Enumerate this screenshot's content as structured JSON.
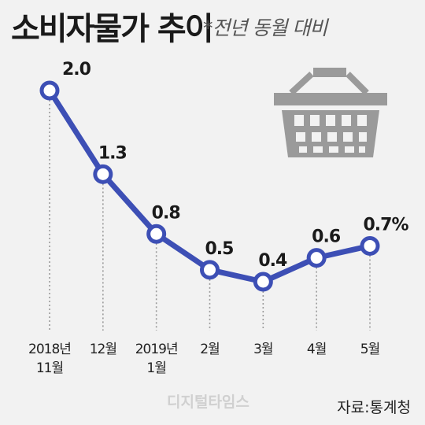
{
  "title": "소비자물가 추이",
  "subtitle": "*전년 동월 대비",
  "source": "자료:통계청",
  "watermark": "디지털타임스",
  "basket_icon": "shopping-basket-icon",
  "colors": {
    "line": "#3d4fb5",
    "marker_fill": "#ffffff",
    "basket": "#9a9a9a",
    "background": "#f2f2f2"
  },
  "chart_data": {
    "type": "line",
    "categories": [
      [
        "2018년",
        "11월"
      ],
      [
        "12월"
      ],
      [
        "2019년",
        "1월"
      ],
      [
        "2월"
      ],
      [
        "3월"
      ],
      [
        "4월"
      ],
      [
        "5월"
      ]
    ],
    "values": [
      2.0,
      1.3,
      0.8,
      0.5,
      0.4,
      0.6,
      0.7
    ],
    "data_labels": [
      "2.0",
      "1.3",
      "0.8",
      "0.5",
      "0.4",
      "0.6",
      "0.7%"
    ],
    "unit": "%",
    "ylim": [
      0.4,
      2.0
    ],
    "grid": false,
    "drop_lines": true
  }
}
